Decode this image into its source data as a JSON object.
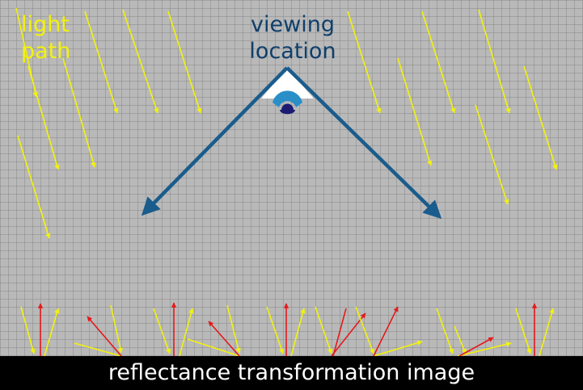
{
  "labels": {
    "light_line1": "light",
    "light_line2": "path",
    "viewing_line1": "viewing",
    "viewing_line2": "location",
    "caption": "reflectance transformation image"
  },
  "colors": {
    "light": "#f2f20c",
    "view": "#1a5c8c",
    "reflection": "#e41a1c",
    "eye_iris": "#2a8fc7",
    "eye_pupil": "#1b1b72",
    "caption_bg": "#000000",
    "caption_text": "#ffffff"
  },
  "icons": {
    "eye": "eye-icon"
  }
}
